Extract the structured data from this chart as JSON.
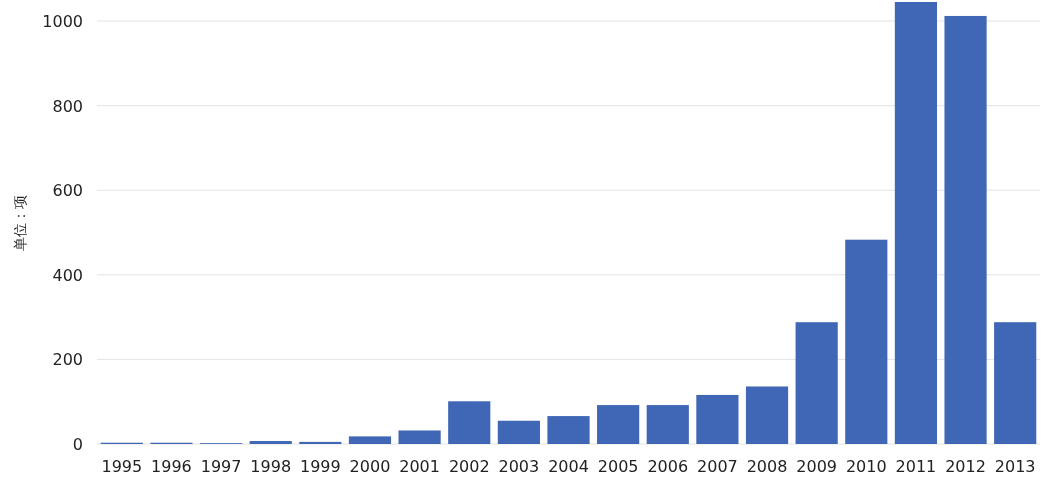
{
  "chart_data": {
    "type": "bar",
    "ylabel": "单位：项",
    "categories": [
      "1995",
      "1996",
      "1997",
      "1998",
      "1999",
      "2000",
      "2001",
      "2002",
      "2003",
      "2004",
      "2005",
      "2006",
      "2007",
      "2008",
      "2009",
      "2010",
      "2011",
      "2012",
      "2013"
    ],
    "values": [
      3,
      3,
      2,
      7,
      5,
      18,
      32,
      101,
      55,
      66,
      92,
      92,
      116,
      136,
      288,
      483,
      1045,
      1012,
      288
    ],
    "color": "#4067b5",
    "ylim": [
      0,
      1045
    ],
    "yticks": [
      0,
      200,
      400,
      600,
      800,
      1000
    ],
    "grid": "y"
  }
}
